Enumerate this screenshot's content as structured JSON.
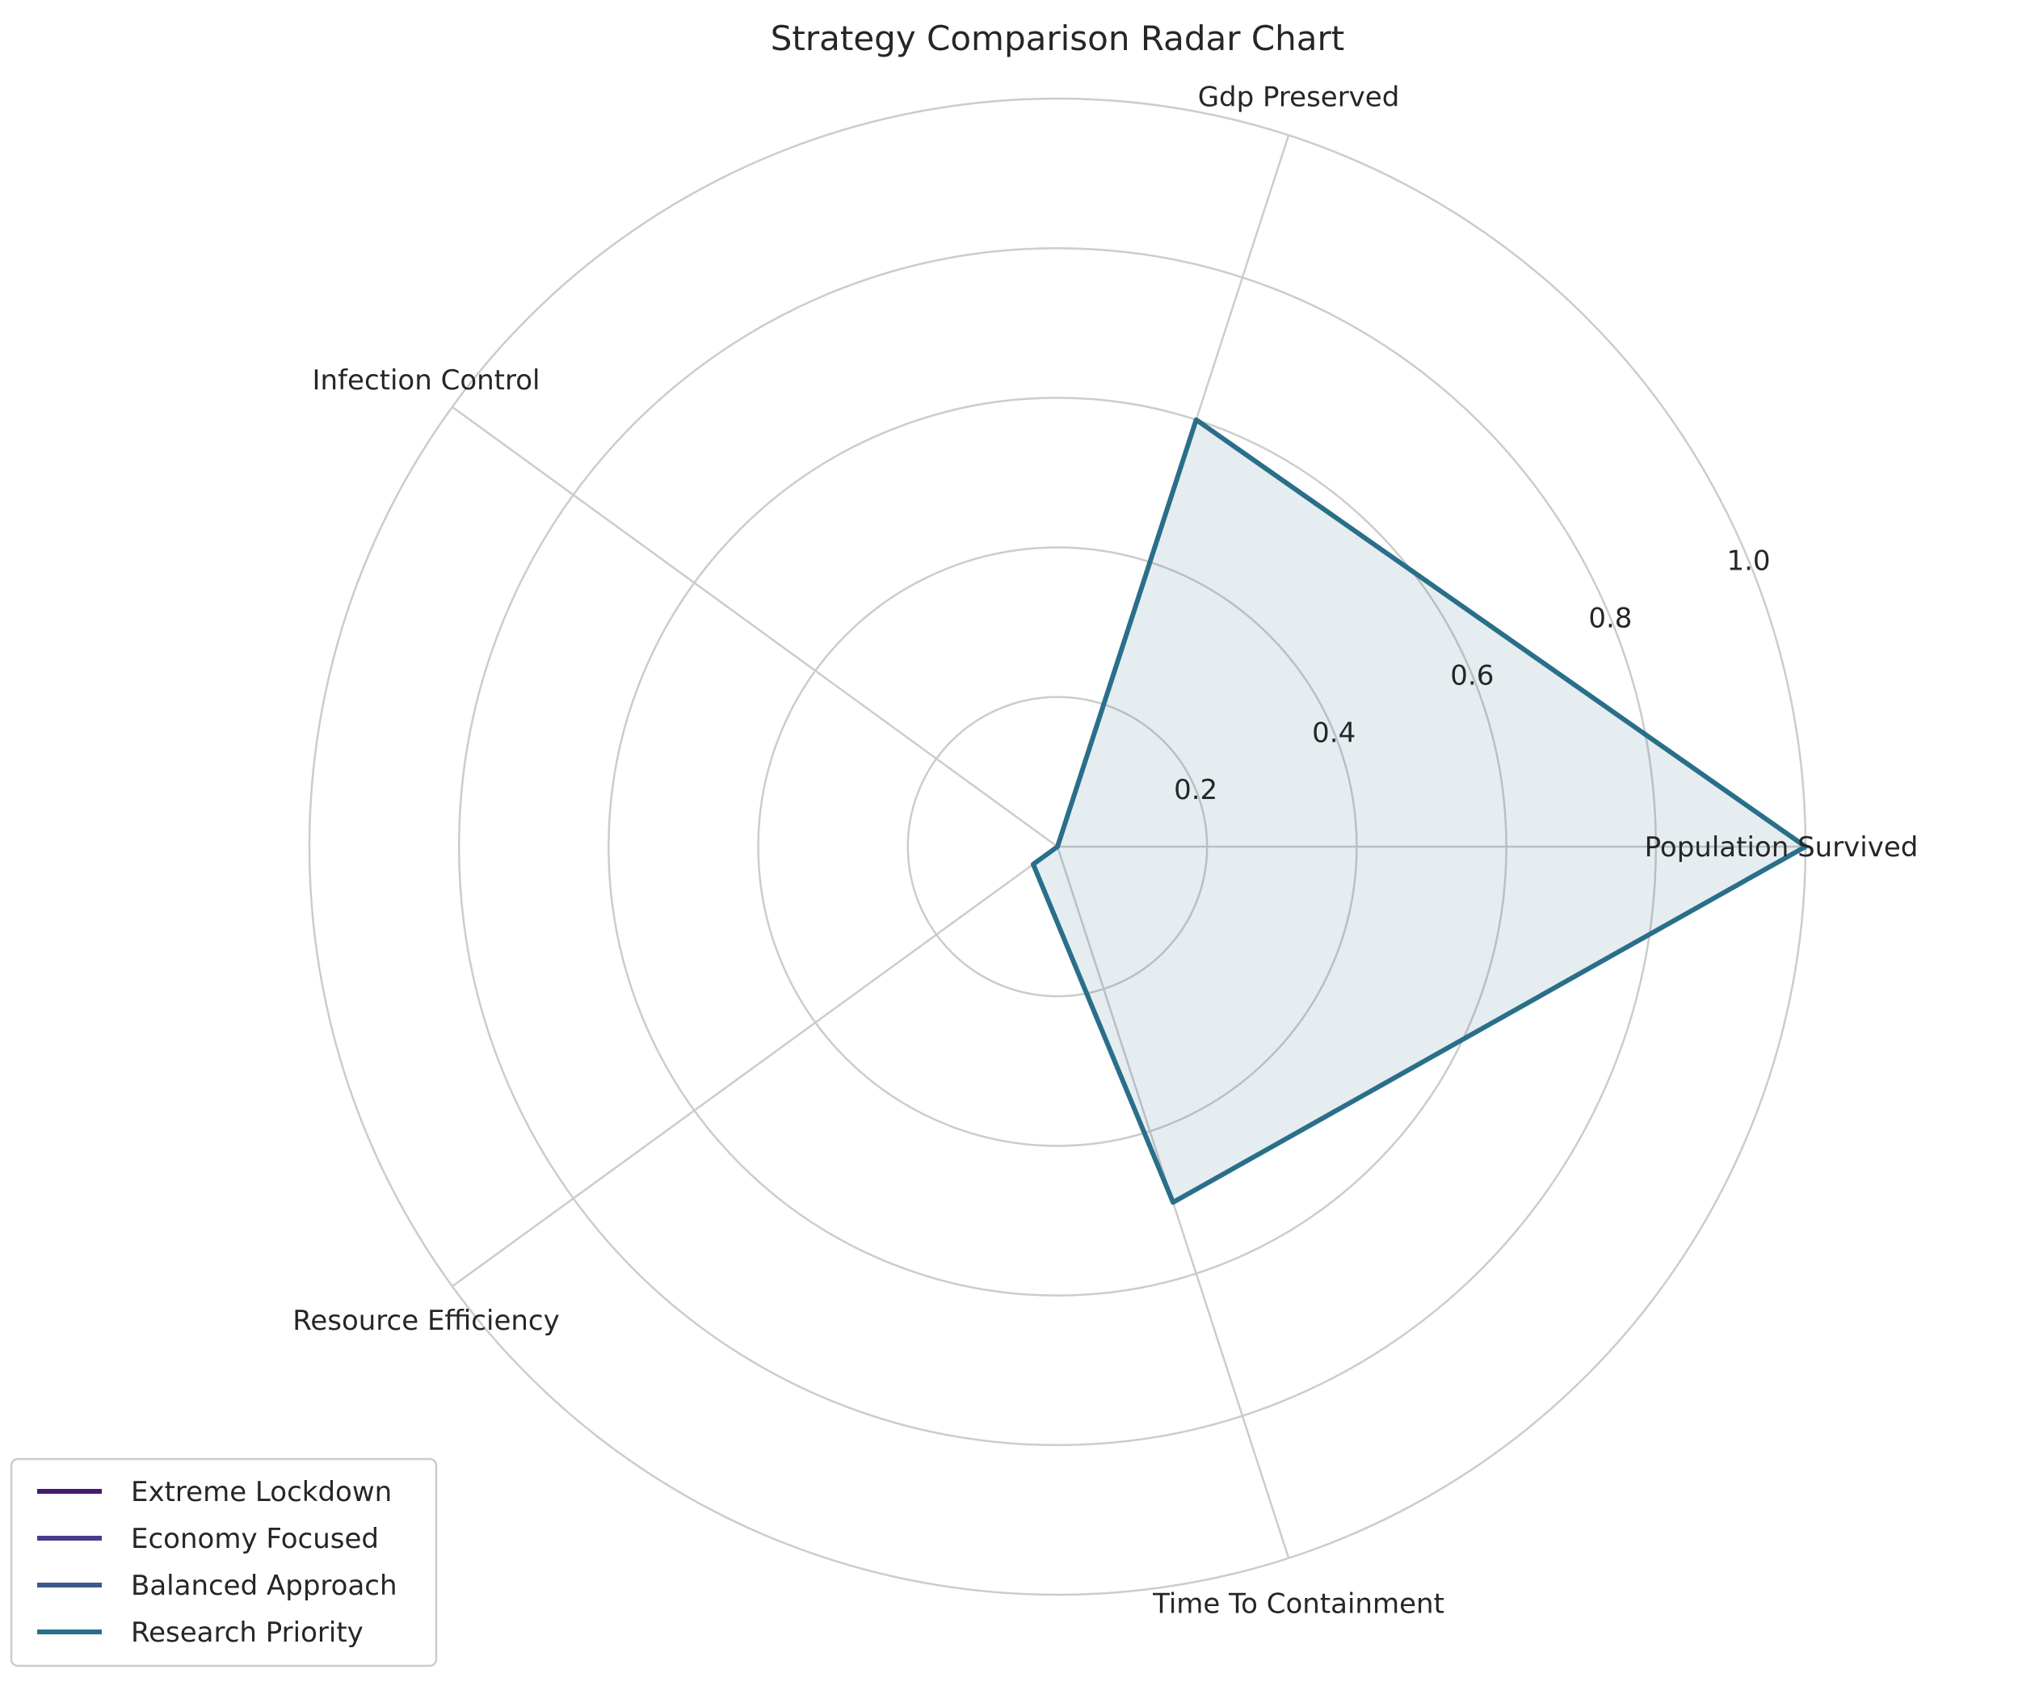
{
  "chart_data": {
    "type": "radar",
    "title": "Strategy Comparison Radar Chart",
    "axes": [
      "Population Survived",
      "Gdp Preserved",
      "Infection Control",
      "Resource Efficiency",
      "Time To Containment"
    ],
    "rlim": [
      0,
      1.0
    ],
    "rticks": [
      "0.2",
      "0.4",
      "0.6",
      "0.8",
      "1.0"
    ],
    "rtick_values": [
      0.2,
      0.4,
      0.6,
      0.8,
      1.0
    ],
    "grid": true,
    "legend_position": "lower-left",
    "series": [
      {
        "name": "Extreme Lockdown",
        "color": "#471a6e",
        "values": null
      },
      {
        "name": "Economy Focused",
        "color": "#473e8a",
        "values": null
      },
      {
        "name": "Balanced Approach",
        "color": "#3b5a8c",
        "values": null
      },
      {
        "name": "Research Priority",
        "color": "#2a6f8a",
        "values": [
          1.0,
          0.6,
          0.0,
          0.04,
          0.5
        ]
      }
    ]
  }
}
